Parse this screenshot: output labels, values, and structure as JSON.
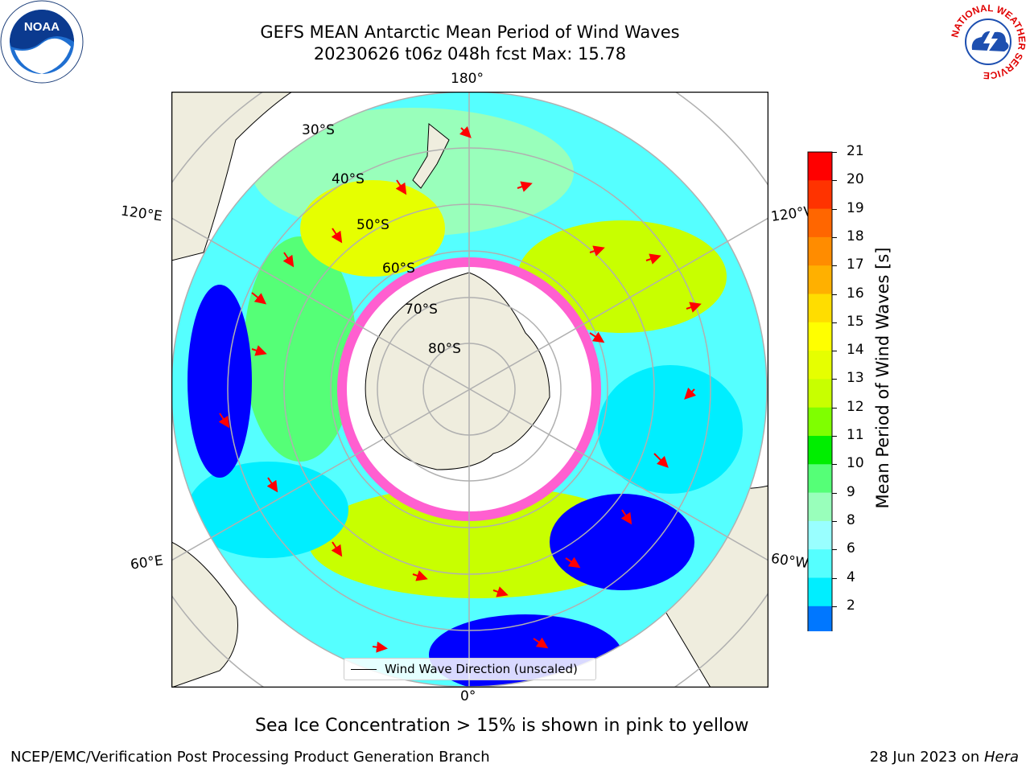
{
  "header": {
    "title_line1": "GEFS MEAN Antarctic Mean Period of Wind Waves",
    "title_line2": "20230626 t06z 048h fcst   Max: 15.78"
  },
  "map": {
    "projection": "south-polar-stereographic",
    "longitude_labels": {
      "top": "180°",
      "bottom": "0°",
      "upper_left": "120°E",
      "upper_right": "120°W",
      "lower_left": "60°E",
      "lower_right": "60°W"
    },
    "latitude_labels": [
      "30°S",
      "40°S",
      "50°S",
      "60°S",
      "70°S",
      "80°S"
    ],
    "legend": {
      "entry": "Wind Wave Direction (unscaled)"
    },
    "colors": {
      "land": "#efedde",
      "ice_shelf": "#ffffff",
      "sea_ice": "#ff5fd0",
      "arrows": "#ff0000"
    }
  },
  "colorbar": {
    "label": "Mean Period of Wind Waves [s]",
    "ticks": [
      "21",
      "20",
      "19",
      "18",
      "17",
      "16",
      "15",
      "14",
      "13",
      "12",
      "11",
      "10",
      "9",
      "8",
      "6",
      "4",
      "2"
    ],
    "color_bins": [
      "#ff0000",
      "#ff3300",
      "#ff6600",
      "#ff8c00",
      "#ffb000",
      "#ffdd00",
      "#ffff00",
      "#e6ff00",
      "#c8ff00",
      "#7fff00",
      "#00ee00",
      "#55ff77",
      "#99ffbb",
      "#99ffff",
      "#55ffff",
      "#00eeff",
      "#0077ff"
    ],
    "extend_color": "#0000ff"
  },
  "logos": {
    "left": "NOAA",
    "right_ring": "NATIONAL WEATHER SERVICE"
  },
  "subtitle": "Sea Ice Concentration > 15% is shown in pink to yellow",
  "footer": {
    "left": "NCEP/EMC/Verification Post Processing Product Generation Branch",
    "right_prefix": "28 Jun 2023 on ",
    "right_host": "Hera"
  }
}
